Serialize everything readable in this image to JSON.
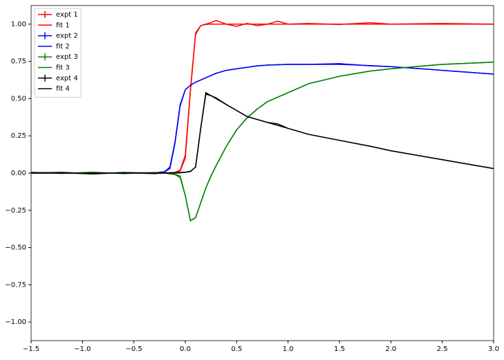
{
  "chart_data": {
    "type": "line",
    "x": [
      -1.5,
      -1.2,
      -0.9,
      -0.6,
      -0.3,
      -0.2,
      -0.15,
      -0.1,
      -0.05,
      0,
      0.05,
      0.1,
      0.15,
      0.2,
      0.25,
      0.3,
      0.4,
      0.5,
      0.6,
      0.7,
      0.8,
      0.9,
      1.0,
      1.2,
      1.5,
      1.8,
      2.0,
      2.5,
      3.0
    ],
    "series": [
      {
        "name": "expt 1",
        "color": "#ff0000",
        "errorbar": true,
        "values": [
          0,
          0.005,
          -0.005,
          0.003,
          -0.004,
          0.002,
          0.003,
          0.005,
          0.02,
          0.12,
          0.56,
          0.94,
          0.99,
          1.0,
          1.01,
          1.025,
          1.0,
          0.985,
          1.005,
          0.99,
          1.0,
          1.02,
          1.0,
          1.005,
          0.998,
          1.01,
          1.0,
          1.005,
          1.0
        ]
      },
      {
        "name": "fit 1",
        "color": "#ff0000",
        "values": [
          0,
          0,
          0,
          0,
          0,
          0,
          0,
          0.003,
          0.015,
          0.1,
          0.55,
          0.93,
          0.99,
          0.998,
          1.0,
          1.0,
          1.0,
          1.0,
          1.0,
          1.0,
          1.0,
          1.0,
          1.0,
          1.0,
          1.0,
          1.0,
          1.0,
          1.0,
          1.0
        ]
      },
      {
        "name": "expt 2",
        "color": "#0000ff",
        "errorbar": true,
        "values": [
          0,
          0.004,
          -0.004,
          0.003,
          0.002,
          0.01,
          0.04,
          0.21,
          0.46,
          0.56,
          0.59,
          0.61,
          0.625,
          0.64,
          0.655,
          0.67,
          0.69,
          0.7,
          0.71,
          0.72,
          0.725,
          0.728,
          0.73,
          0.73,
          0.735,
          0.72,
          0.715,
          0.69,
          0.665
        ]
      },
      {
        "name": "fit 2",
        "color": "#0000ff",
        "values": [
          0,
          0,
          0,
          0,
          0,
          0.008,
          0.03,
          0.2,
          0.45,
          0.56,
          0.59,
          0.61,
          0.625,
          0.64,
          0.655,
          0.67,
          0.69,
          0.7,
          0.71,
          0.72,
          0.725,
          0.727,
          0.73,
          0.73,
          0.73,
          0.722,
          0.715,
          0.69,
          0.665
        ]
      },
      {
        "name": "expt 3",
        "color": "#008000",
        "errorbar": true,
        "values": [
          0.005,
          -0.003,
          0.006,
          -0.004,
          0.004,
          0.0,
          -0.005,
          -0.01,
          -0.03,
          -0.15,
          -0.32,
          -0.3,
          -0.2,
          -0.1,
          -0.02,
          0.05,
          0.18,
          0.29,
          0.37,
          0.43,
          0.48,
          0.51,
          0.54,
          0.6,
          0.65,
          0.685,
          0.7,
          0.73,
          0.745
        ]
      },
      {
        "name": "fit 3",
        "color": "#008000",
        "values": [
          0,
          0,
          0,
          0,
          0,
          0,
          -0.003,
          -0.008,
          -0.02,
          -0.15,
          -0.32,
          -0.3,
          -0.2,
          -0.1,
          -0.02,
          0.05,
          0.18,
          0.29,
          0.37,
          0.43,
          0.48,
          0.51,
          0.54,
          0.6,
          0.65,
          0.685,
          0.7,
          0.73,
          0.745
        ]
      },
      {
        "name": "expt 4",
        "color": "#000000",
        "errorbar": true,
        "values": [
          0.003,
          0.002,
          -0.006,
          0.004,
          -0.003,
          0.002,
          0.0,
          0.002,
          0.004,
          0.006,
          0.012,
          0.04,
          0.3,
          0.54,
          0.52,
          0.505,
          0.46,
          0.42,
          0.38,
          0.36,
          0.34,
          0.33,
          0.3,
          0.26,
          0.22,
          0.18,
          0.15,
          0.09,
          0.03
        ]
      },
      {
        "name": "fit 4",
        "color": "#000000",
        "values": [
          0,
          0,
          0,
          0,
          0,
          0,
          0,
          0,
          0.002,
          0.005,
          0.01,
          0.04,
          0.3,
          0.53,
          0.52,
          0.5,
          0.46,
          0.42,
          0.38,
          0.36,
          0.34,
          0.32,
          0.3,
          0.26,
          0.22,
          0.18,
          0.15,
          0.09,
          0.03
        ]
      }
    ],
    "xlim": [
      -1.5,
      3.0
    ],
    "xticks": [
      {
        "value": -1.5,
        "label": "−1.5"
      },
      {
        "value": -1.0,
        "label": "−1.0"
      },
      {
        "value": -0.5,
        "label": "−0.5"
      },
      {
        "value": 0,
        "label": "0.0"
      },
      0.5,
      {
        "value": 1,
        "label": "1.0"
      },
      1.5,
      {
        "value": 2,
        "label": "2.0"
      },
      2.5,
      {
        "value": 3,
        "label": "3.0"
      }
    ],
    "ylim": [
      -1.125,
      1.125
    ],
    "yticks": [
      {
        "value": -1,
        "label": "−1.00"
      },
      {
        "value": -0.75,
        "label": "−0.75"
      },
      {
        "value": -0.5,
        "label": "−0.50"
      },
      {
        "value": -0.25,
        "label": "−0.25"
      },
      {
        "value": 0,
        "label": "0.00"
      },
      0.25,
      {
        "value": 0.5,
        "label": "0.50"
      },
      0.75,
      {
        "value": 1,
        "label": "1.00"
      }
    ],
    "legend": "upper left"
  }
}
